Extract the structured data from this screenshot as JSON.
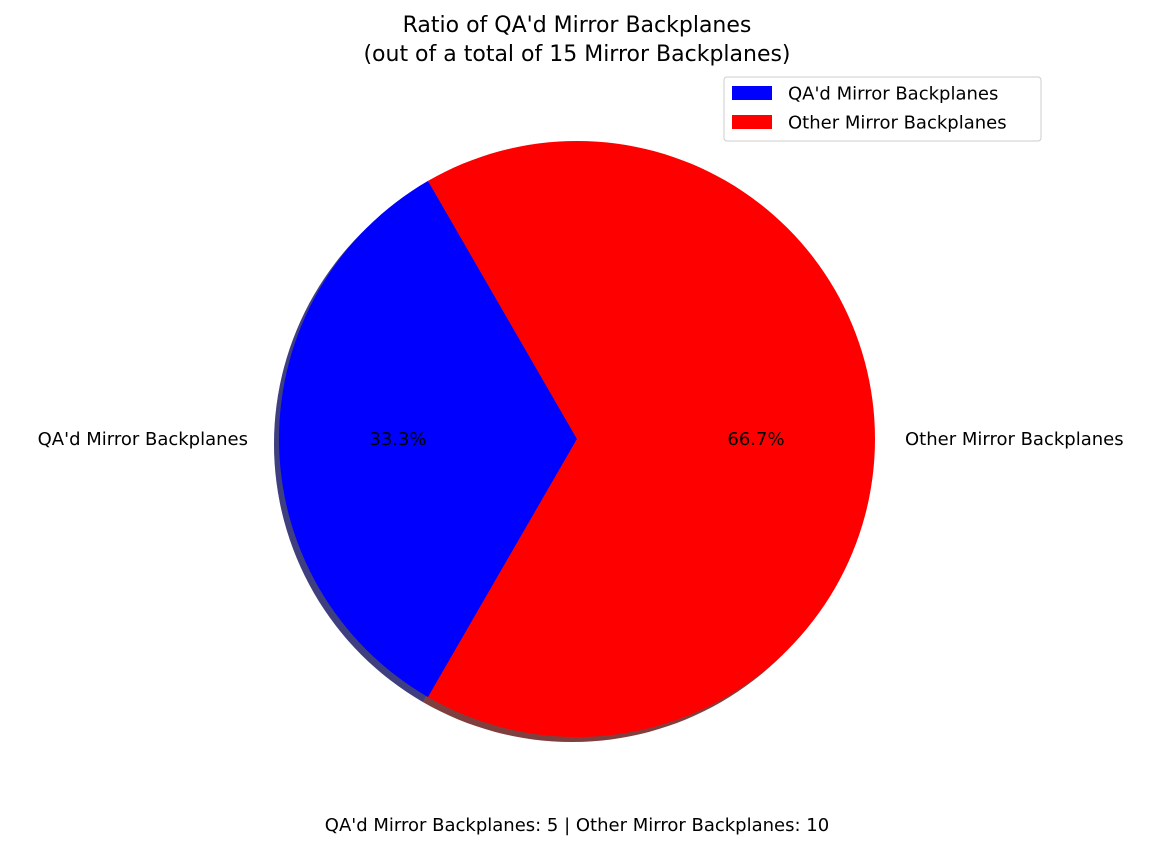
{
  "chart_data": {
    "type": "pie",
    "title_lines": [
      "Ratio of QA'd Mirror Backplanes",
      "(out of a total of 15 Mirror Backplanes)"
    ],
    "slices": [
      {
        "label": "QA'd Mirror Backplanes",
        "value": 5,
        "percent_label": "33.3%",
        "color": "#0000ff"
      },
      {
        "label": "Other Mirror Backplanes",
        "value": 10,
        "percent_label": "66.7%",
        "color": "#ff0000"
      }
    ],
    "start_angle_deg": 120,
    "counterclockwise": true,
    "shadow": true,
    "legend": {
      "placement": "upper-right",
      "entries": [
        "QA'd Mirror Backplanes",
        "Other Mirror Backplanes"
      ]
    },
    "footer_text": "QA'd Mirror Backplanes: 5 | Other Mirror Backplanes: 10"
  }
}
